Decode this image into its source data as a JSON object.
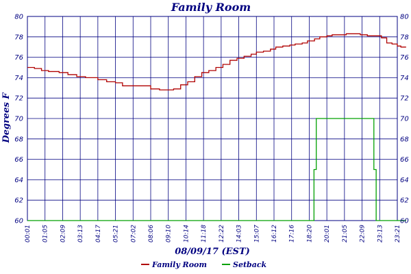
{
  "chart_data": {
    "type": "line",
    "title": "Family Room",
    "xlabel": "08/09/17 (EST)",
    "ylabel": "Degrees F",
    "ylim": [
      60,
      80
    ],
    "yticks": [
      60,
      62,
      64,
      66,
      68,
      70,
      72,
      74,
      76,
      78,
      80
    ],
    "xticks": [
      "00:01",
      "01:05",
      "02:09",
      "03:13",
      "04:17",
      "05:21",
      "07:02",
      "08:06",
      "09:10",
      "10:14",
      "11:18",
      "12:22",
      "14:03",
      "15:07",
      "16:12",
      "17:16",
      "18:20",
      "20:01",
      "21:05",
      "22:09",
      "23:13",
      "23:21"
    ],
    "grid": true,
    "legend_position": "bottom",
    "series": [
      {
        "name": "Family Room",
        "color": "#b00000",
        "x": [
          0,
          0.4,
          0.8,
          1.2,
          1.8,
          2.3,
          2.8,
          3.3,
          4.0,
          4.5,
          5.0,
          5.4,
          6.0,
          6.6,
          7.0,
          7.5,
          7.9,
          8.3,
          8.7,
          9.1,
          9.5,
          9.9,
          10.3,
          10.7,
          11.1,
          11.5,
          11.9,
          12.3,
          12.7,
          13.0,
          13.4,
          13.8,
          14.1,
          14.5,
          14.9,
          15.2,
          15.6,
          15.9,
          16.3,
          16.6,
          17.0,
          17.3,
          17.7,
          18.1,
          18.5,
          18.9,
          19.3,
          19.7,
          20.1,
          20.4,
          20.7,
          21.0,
          21.2,
          21.5
        ],
        "values": [
          75.0,
          74.9,
          74.7,
          74.6,
          74.5,
          74.3,
          74.1,
          74.0,
          73.8,
          73.6,
          73.5,
          73.2,
          73.2,
          73.2,
          72.9,
          72.8,
          72.8,
          72.9,
          73.3,
          73.6,
          74.1,
          74.5,
          74.7,
          75.0,
          75.3,
          75.7,
          75.9,
          76.1,
          76.3,
          76.5,
          76.6,
          76.8,
          77.0,
          77.1,
          77.2,
          77.3,
          77.4,
          77.6,
          77.8,
          78.0,
          78.1,
          78.2,
          78.2,
          78.3,
          78.3,
          78.2,
          78.1,
          78.1,
          77.9,
          77.4,
          77.3,
          77.1,
          77.0,
          77.0
        ]
      },
      {
        "name": "Setback",
        "color": "#00a000",
        "x": [
          0,
          16.2,
          16.27,
          16.33,
          16.4,
          19.6,
          19.67,
          19.73,
          19.8,
          21.5
        ],
        "values": [
          60,
          60,
          65,
          65,
          70,
          70,
          65,
          65,
          60,
          60
        ]
      }
    ]
  }
}
